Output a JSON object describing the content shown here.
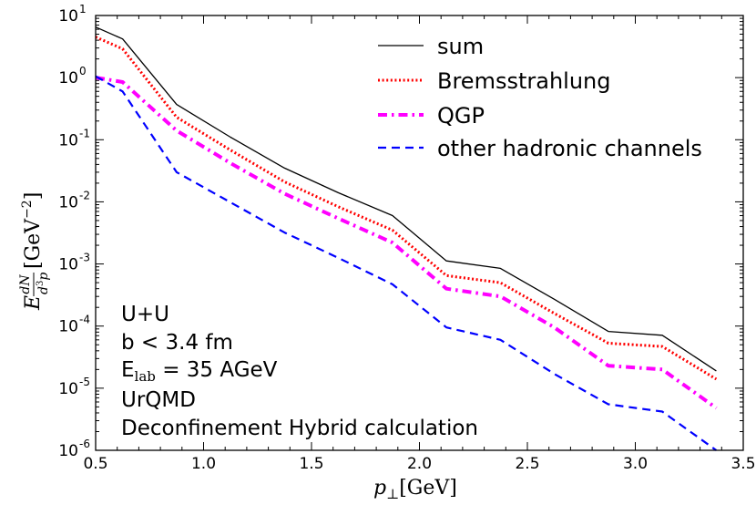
{
  "chart_data": {
    "type": "line",
    "title": "",
    "xlabel": "p⊥[GeV]",
    "xlabel_main": "p",
    "xlabel_sub": "⊥",
    "xlabel_unit": "[GeV]",
    "ylabel": "E dN/d³p [GeV⁻²]",
    "ylabel_parts": {
      "E": "E",
      "num": "dN",
      "den_d": "d",
      "den_exp": "3",
      "den_p": "p",
      "unit": "[GeV",
      "unit_exp": "−2",
      "unit_close": "]"
    },
    "xlim": [
      0.5,
      3.5
    ],
    "ylim": [
      1e-06,
      10
    ],
    "yscale": "log",
    "x_ticks": [
      0.5,
      1.0,
      1.5,
      2.0,
      2.5,
      3.0,
      3.5
    ],
    "x_tick_labels": [
      "0.5",
      "1.0",
      "1.5",
      "2.0",
      "2.5",
      "3.0",
      "3.5"
    ],
    "y_ticks": [
      {
        "value": 10.0,
        "base": "10",
        "exp": "1"
      },
      {
        "value": 1.0,
        "base": "10",
        "exp": "0"
      },
      {
        "value": 0.1,
        "base": "10",
        "exp": "-1"
      },
      {
        "value": 0.01,
        "base": "10",
        "exp": "-2"
      },
      {
        "value": 0.001,
        "base": "10",
        "exp": "-3"
      },
      {
        "value": 0.0001,
        "base": "10",
        "exp": "-4"
      },
      {
        "value": 1e-05,
        "base": "10",
        "exp": "-5"
      },
      {
        "value": 1e-06,
        "base": "10",
        "exp": "-6"
      }
    ],
    "legend_position": "top-right",
    "series": [
      {
        "name": "sum",
        "color": "#000000",
        "style": "solid",
        "x": [
          0.5,
          0.625,
          0.875,
          1.125,
          1.375,
          1.625,
          1.875,
          2.125,
          2.375,
          2.625,
          2.875,
          3.125,
          3.375
        ],
        "y": [
          6.5,
          4.2,
          0.37,
          0.11,
          0.035,
          0.014,
          0.006,
          0.00112,
          0.00085,
          0.00027,
          8.2e-05,
          7.1e-05,
          1.9e-05
        ]
      },
      {
        "name": "Bremsstrahlung",
        "color": "#ff0000",
        "style": "dotted",
        "x": [
          0.5,
          0.625,
          0.875,
          1.125,
          1.375,
          1.625,
          1.875,
          2.125,
          2.375,
          2.625,
          2.875,
          3.125,
          3.375
        ],
        "y": [
          4.5,
          2.9,
          0.23,
          0.068,
          0.021,
          0.0083,
          0.0035,
          0.00065,
          0.0005,
          0.00016,
          5.3e-05,
          4.7e-05,
          1.4e-05
        ]
      },
      {
        "name": "QGP",
        "color": "#ff00ff",
        "style": "dashdot",
        "x": [
          0.5,
          0.625,
          0.875,
          1.125,
          1.375,
          1.625,
          1.875,
          2.125,
          2.375,
          2.625,
          2.875,
          3.125,
          3.375
        ],
        "y": [
          1.0,
          0.85,
          0.14,
          0.042,
          0.0135,
          0.0054,
          0.0022,
          0.0004,
          0.0003,
          9.5e-05,
          2.3e-05,
          2e-05,
          4.8e-06
        ]
      },
      {
        "name": "other hadronic channels",
        "color": "#0000ff",
        "style": "dashed",
        "x": [
          0.5,
          0.625,
          0.875,
          1.125,
          1.375,
          1.625,
          1.875,
          2.125,
          2.375,
          2.625,
          2.875,
          3.125,
          3.375
        ],
        "y": [
          1.05,
          0.6,
          0.03,
          0.0098,
          0.0032,
          0.00125,
          0.00047,
          9.5e-05,
          6e-05,
          1.7e-05,
          5.5e-06,
          4.2e-06,
          1e-06
        ]
      }
    ],
    "annotations": {
      "line1": "U+U",
      "line2": "b < 3.4 fm",
      "line3_main": "E",
      "line3_sub": "lab",
      "line3_rest": " = 35 AGeV",
      "line4": "UrQMD",
      "line5": "Deconfinement Hybrid calculation"
    }
  }
}
